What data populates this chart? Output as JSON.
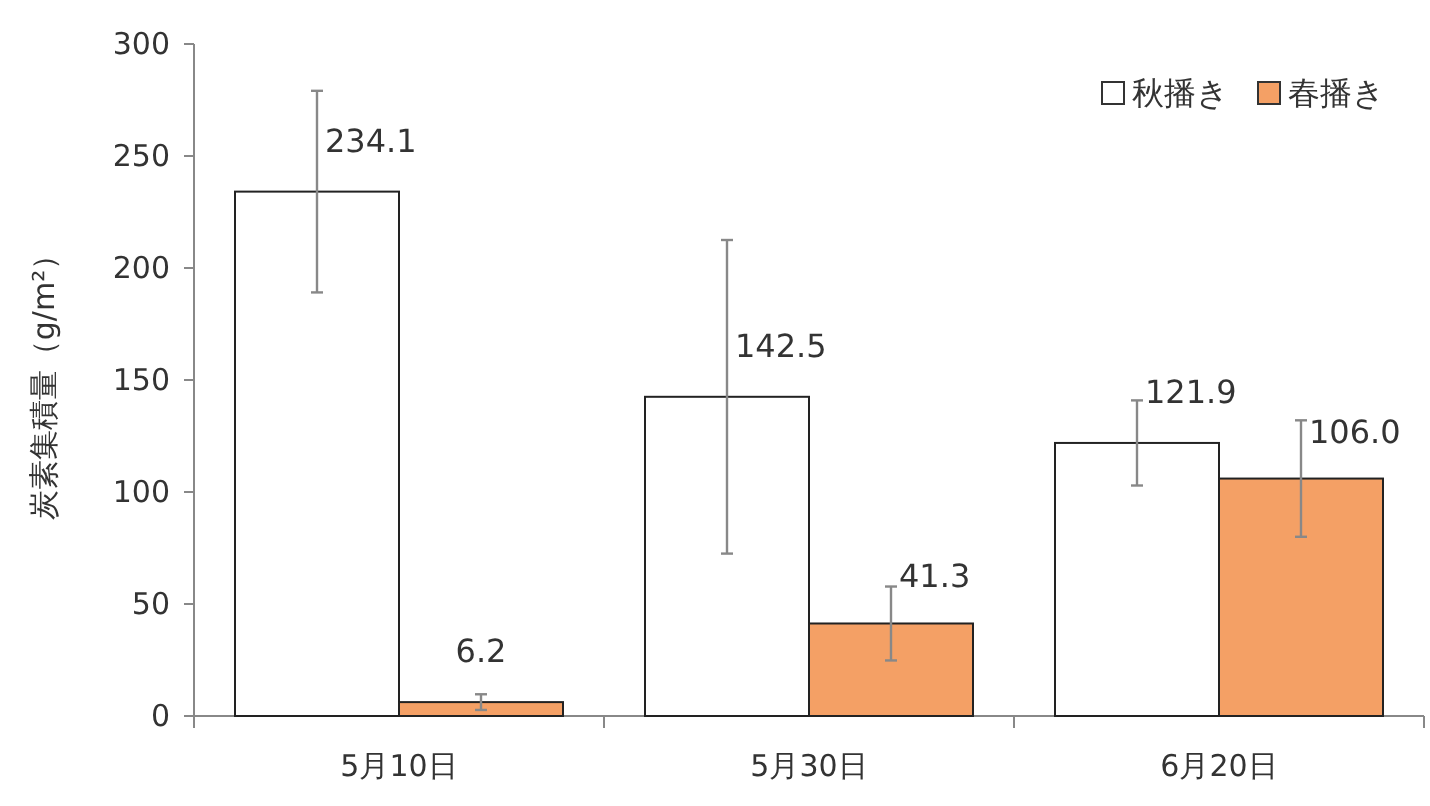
{
  "chart_data": {
    "type": "bar",
    "ylabel": "炭素集積量（g/m²）",
    "categories": [
      "5月10日",
      "5月30日",
      "6月20日"
    ],
    "series": [
      {
        "name": "秋播き",
        "color": "#ffffff",
        "values": [
          234.1,
          142.5,
          121.9
        ],
        "errors": [
          45,
          70,
          19
        ]
      },
      {
        "name": "春播き",
        "color": "#f4a065",
        "values": [
          6.2,
          41.3,
          106.0
        ],
        "errors": [
          3.5,
          16.5,
          26
        ]
      }
    ],
    "ylim": [
      0,
      300
    ],
    "yticks": [
      0,
      50,
      100,
      150,
      200,
      250,
      300
    ],
    "value_labels": [
      [
        "234.1",
        "142.5",
        "121.9"
      ],
      [
        "6.2",
        "41.3",
        "106.0"
      ]
    ],
    "grid": false,
    "legend": "top right"
  }
}
